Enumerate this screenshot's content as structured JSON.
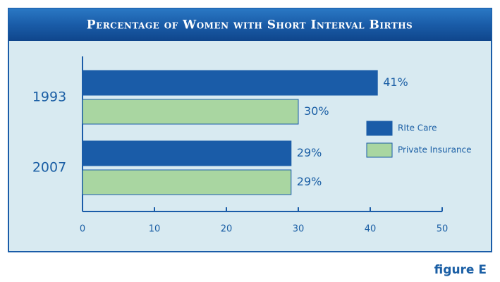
{
  "chart_data": {
    "type": "hbar",
    "title": "Percentage of Women with Short Interval Births",
    "categories": [
      "1993",
      "2007"
    ],
    "series": [
      {
        "name": "RIte Care",
        "color": "#1a5ca8",
        "values": [
          41,
          29
        ],
        "value_labels": [
          "41%",
          "29%"
        ]
      },
      {
        "name": "Private Insurance",
        "color": "#a9d6a1",
        "values": [
          30,
          29
        ],
        "value_labels": [
          "30%",
          "29%"
        ]
      }
    ],
    "xlim": [
      0,
      50
    ],
    "xticks": [
      0,
      10,
      20,
      30,
      40,
      50
    ],
    "legend": "right"
  },
  "caption": "figure E"
}
